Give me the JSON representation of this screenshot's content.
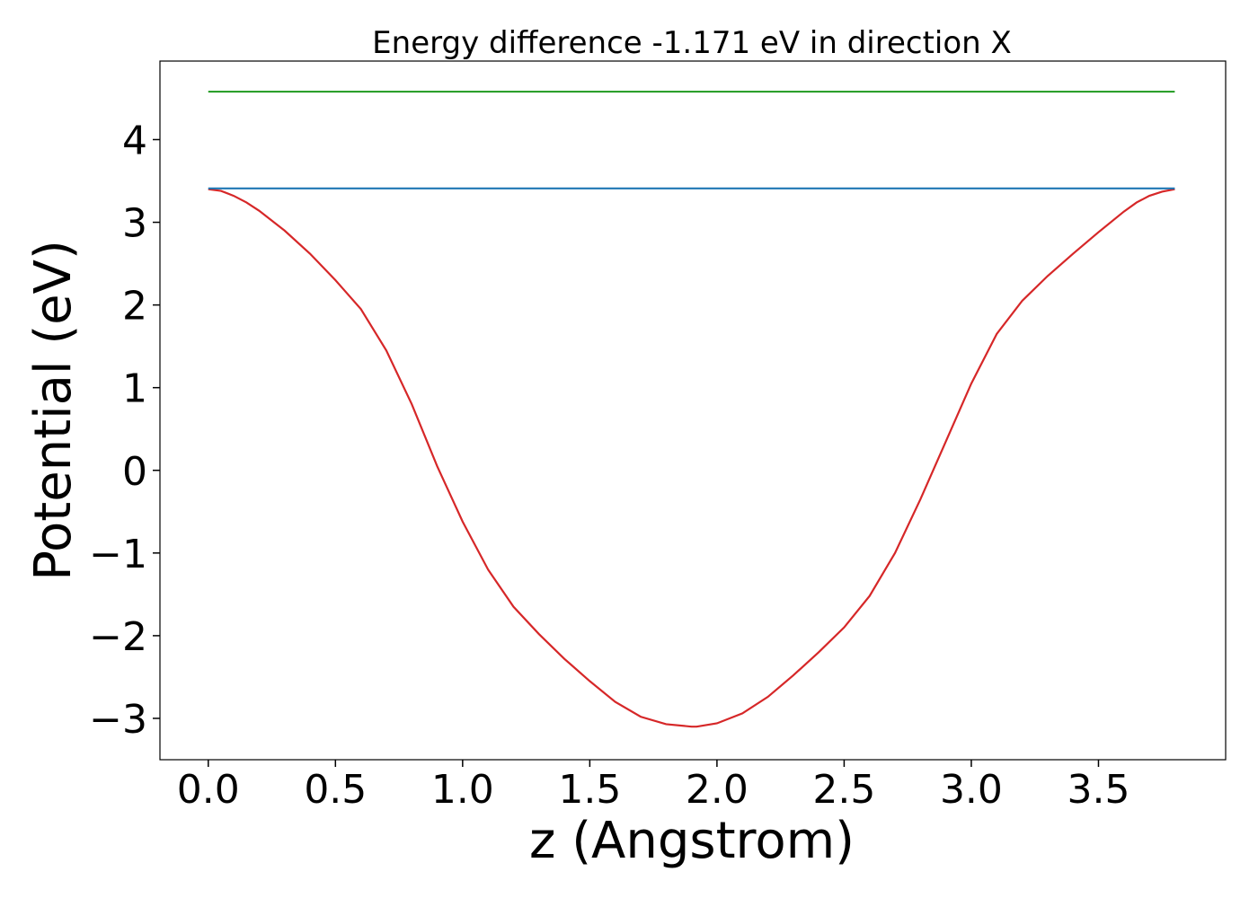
{
  "chart_data": {
    "type": "line",
    "title": "Energy difference -1.171 eV in direction X",
    "xlabel": "z (Angstrom)",
    "ylabel": "Potential (eV)",
    "xlim": [
      -0.19,
      4.0
    ],
    "ylim": [
      -3.5,
      4.95
    ],
    "x_ticks": [
      0.0,
      0.5,
      1.0,
      1.5,
      2.0,
      2.5,
      3.0,
      3.5
    ],
    "x_tick_labels": [
      "0.0",
      "0.5",
      "1.0",
      "1.5",
      "2.0",
      "2.5",
      "3.0",
      "3.5"
    ],
    "y_ticks": [
      -3,
      -2,
      -1,
      0,
      1,
      2,
      3,
      4
    ],
    "y_tick_labels": [
      "−3",
      "−2",
      "−1",
      "0",
      "1",
      "2",
      "3",
      "4"
    ],
    "grid": false,
    "series": [
      {
        "color": "#d62728",
        "x": [
          0.0,
          0.05,
          0.1,
          0.15,
          0.2,
          0.3,
          0.4,
          0.5,
          0.6,
          0.7,
          0.8,
          0.9,
          1.0,
          1.1,
          1.2,
          1.3,
          1.4,
          1.5,
          1.6,
          1.7,
          1.8,
          1.9,
          1.92,
          2.0,
          2.1,
          2.2,
          2.3,
          2.4,
          2.5,
          2.6,
          2.7,
          2.8,
          2.9,
          3.0,
          3.1,
          3.2,
          3.3,
          3.4,
          3.5,
          3.6,
          3.65,
          3.7,
          3.75,
          3.8
        ],
        "y": [
          3.4,
          3.38,
          3.32,
          3.24,
          3.14,
          2.9,
          2.62,
          2.3,
          1.95,
          1.45,
          0.8,
          0.05,
          -0.62,
          -1.2,
          -1.65,
          -1.98,
          -2.28,
          -2.55,
          -2.8,
          -2.98,
          -3.07,
          -3.1,
          -3.1,
          -3.06,
          -2.94,
          -2.74,
          -2.48,
          -2.2,
          -1.9,
          -1.52,
          -1.0,
          -0.35,
          0.35,
          1.05,
          1.65,
          2.05,
          2.35,
          2.62,
          2.88,
          3.13,
          3.24,
          3.32,
          3.37,
          3.4
        ]
      },
      {
        "color": "#1f77b4",
        "x": [
          0.0,
          3.8
        ],
        "y": [
          3.41,
          3.41
        ]
      },
      {
        "color": "#2ca02c",
        "x": [
          0.0,
          3.8
        ],
        "y": [
          4.58,
          4.58
        ]
      }
    ]
  }
}
